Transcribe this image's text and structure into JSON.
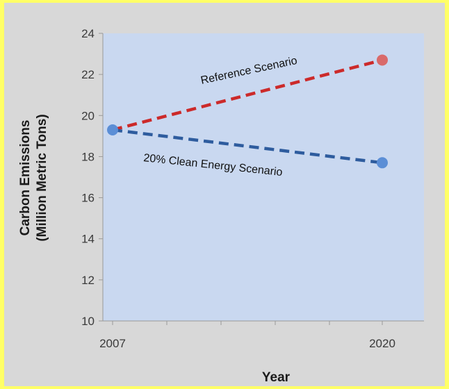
{
  "chart_data": {
    "type": "line",
    "title": "",
    "xlabel": "Year",
    "ylabel_line1": "Carbon Emissions",
    "ylabel_line2": "(Million Metric Tons)",
    "x": [
      2007,
      2020
    ],
    "x_tick_labels": [
      "2007",
      "2020"
    ],
    "xlim": [
      2007,
      2020
    ],
    "ylim": [
      10,
      24
    ],
    "y_ticks": [
      10,
      12,
      14,
      16,
      18,
      20,
      22,
      24
    ],
    "grid": false,
    "legend": "none",
    "series": [
      {
        "values": [
          19.3,
          22.7
        ],
        "color": "#cc2a2a",
        "marker_color": "#d96a6a",
        "line_style": "dashed"
      },
      {
        "values": [
          19.3,
          17.7
        ],
        "color": "#2e5c9e",
        "marker_color": "#5b8ed6",
        "line_style": "dashed"
      }
    ],
    "annotations": [
      {
        "text": "Reference Scenario",
        "series": 0
      },
      {
        "text": "20% Clean Energy Scenario",
        "series": 1
      }
    ],
    "plot_background": "#c9d8f0",
    "frame_background": "#d8d8d8",
    "page_background": "#ffff66"
  }
}
